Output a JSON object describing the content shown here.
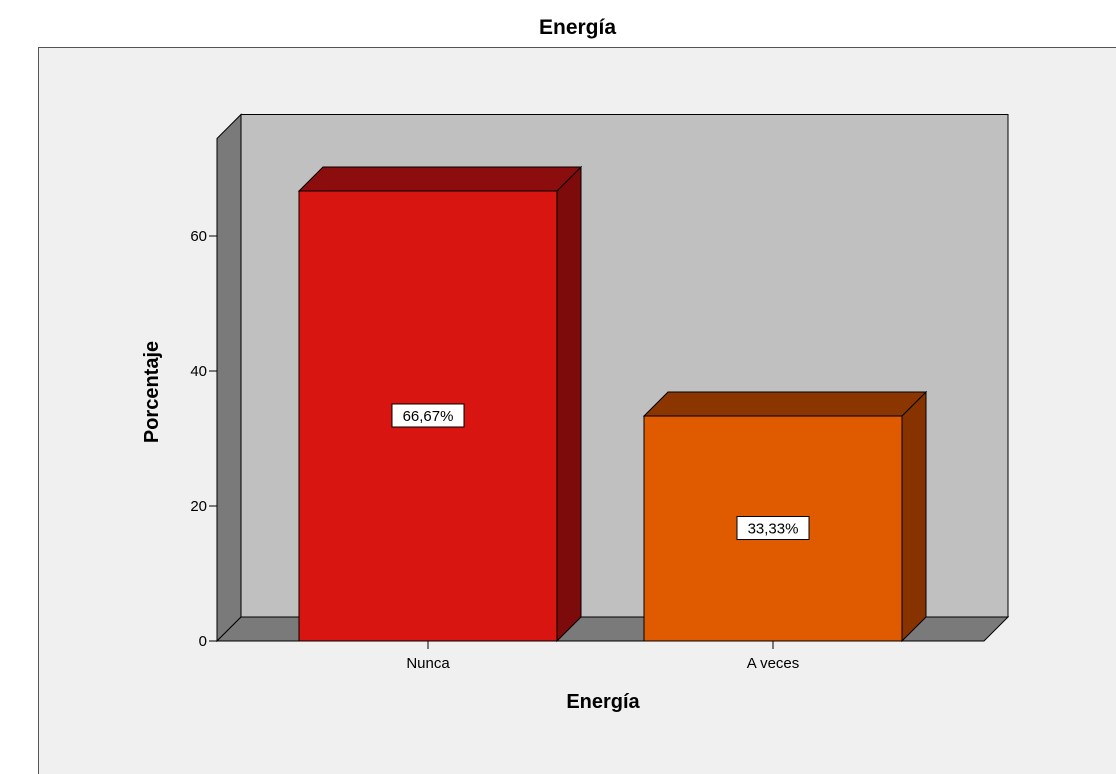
{
  "chart_data": {
    "type": "bar",
    "title": "Energía",
    "xlabel": "Energía",
    "ylabel": "Porcentaje",
    "categories": [
      "Nunca",
      "A veces"
    ],
    "values": [
      66.67,
      33.33
    ],
    "data_labels": [
      "66,67%",
      "33,33%"
    ],
    "yticks": [
      0,
      20,
      40,
      60
    ],
    "ylim": [
      0,
      78
    ],
    "style": "3d",
    "colors": {
      "bars": [
        "#d81510",
        "#e05a00"
      ],
      "bar_tops": [
        "#8b0d0d",
        "#8b3500"
      ],
      "bar_sides": [
        "#7e0b0b",
        "#873300"
      ],
      "wall_back": "#c0c0c0",
      "wall_side": "#7a7a7a",
      "floor": "#7a7a7a"
    }
  }
}
